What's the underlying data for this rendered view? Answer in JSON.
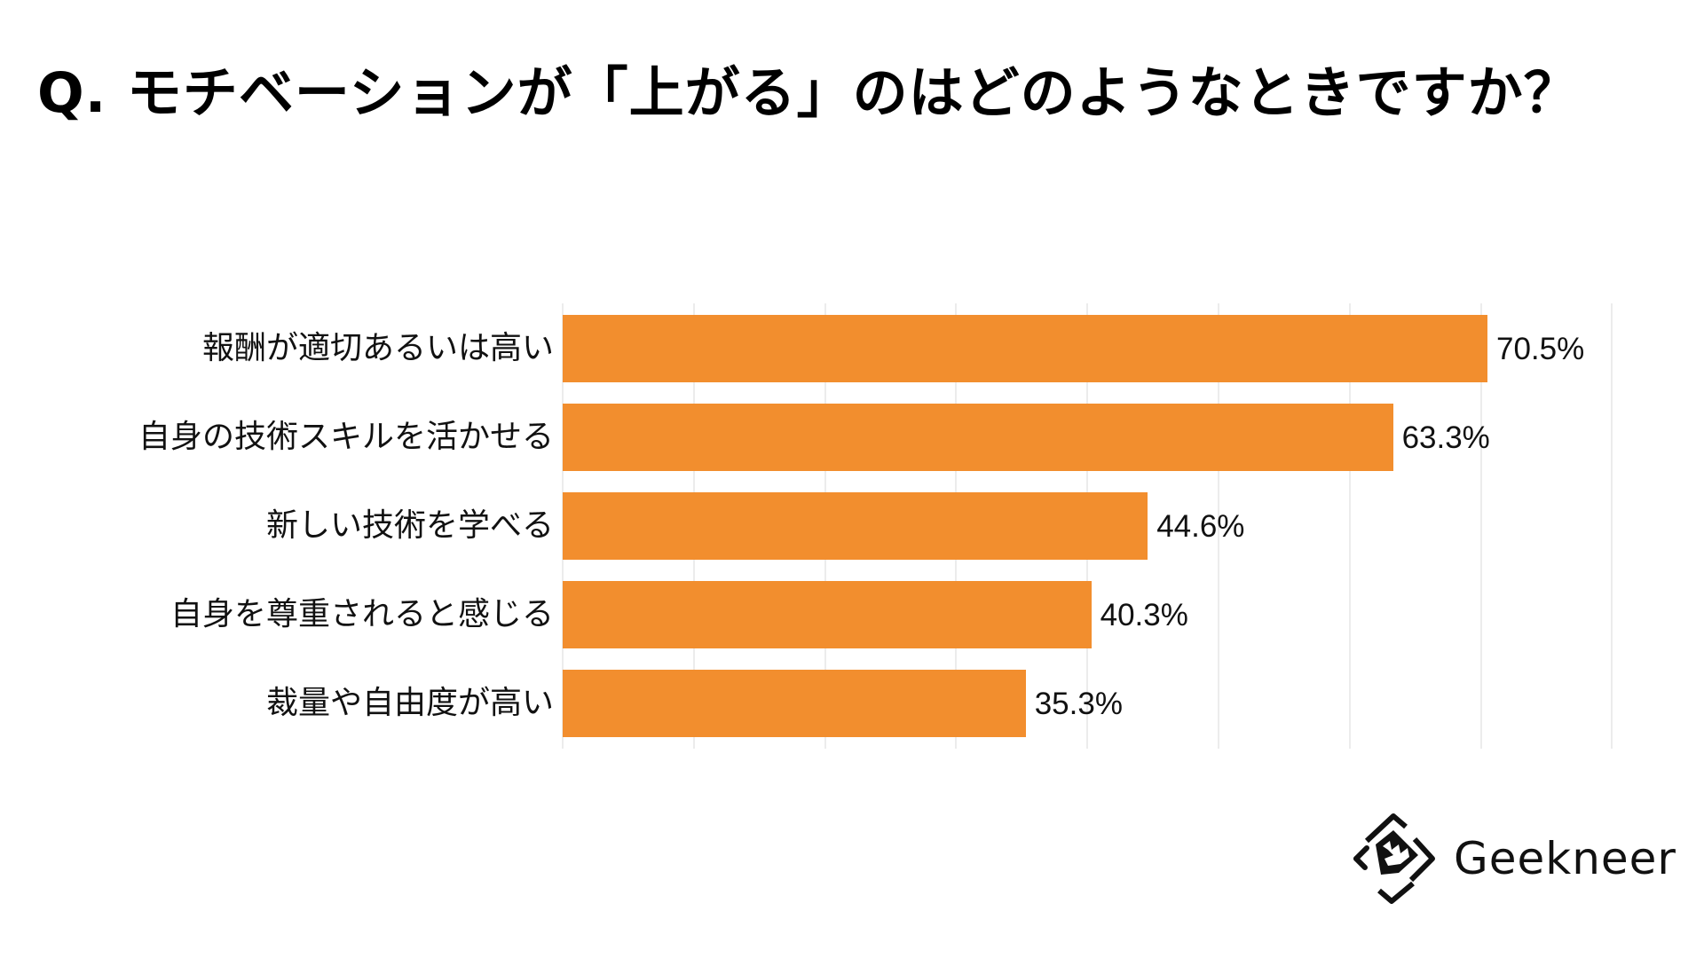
{
  "title": "Q. モチベーションが「上がる」のはどのようなときですか？",
  "logo": {
    "icon": "geekneer-logo-icon",
    "text": "Geekneer"
  },
  "colors": {
    "bar": "#f28e2e",
    "grid": "#ececec",
    "text": "#111111"
  },
  "chart_data": {
    "type": "bar",
    "orientation": "horizontal",
    "title": "Q. モチベーションが「上がる」のはどのようなときですか？",
    "categories": [
      "報酬が適切あるいは高い",
      "自身の技術スキルを活かせる",
      "新しい技術を学べる",
      "自身を尊重されると感じる",
      "裁量や自由度が高い"
    ],
    "values": [
      70.5,
      63.3,
      44.6,
      40.3,
      35.3
    ],
    "value_labels": [
      "70.5%",
      "63.3%",
      "44.6%",
      "40.3%",
      "35.3%"
    ],
    "unit": "%",
    "xlabel": "",
    "ylabel": "",
    "xlim": [
      0,
      80
    ],
    "grid": true,
    "grid_step": 10,
    "x_tick_labels_visible": false,
    "legend": null,
    "bar_color": "#f28e2e"
  }
}
